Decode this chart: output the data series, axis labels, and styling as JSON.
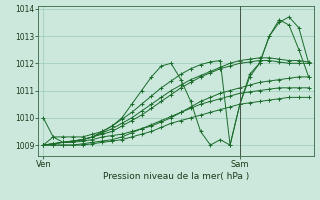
{
  "bg_color": "#cce8dd",
  "grid_color": "#99ccbb",
  "line_color": "#1a6b2a",
  "marker_color": "#1a6b2a",
  "xlabel": "Pression niveau de la mer( hPa )",
  "ylim": [
    1008.6,
    1014.1
  ],
  "yticks": [
    1009,
    1010,
    1011,
    1012,
    1013,
    1014
  ],
  "xtick_labels": [
    "Ven",
    "Sam"
  ],
  "xtick_pos": [
    0,
    20
  ],
  "total_points": 28,
  "vline_x": 20,
  "series": [
    [
      1010.0,
      1009.3,
      1009.1,
      1009.1,
      1009.15,
      1009.2,
      1009.3,
      1009.35,
      1009.4,
      1009.5,
      1009.6,
      1009.7,
      1009.85,
      1010.0,
      1010.2,
      1010.4,
      1010.6,
      1010.75,
      1010.9,
      1011.0,
      1011.1,
      1011.2,
      1011.3,
      1011.35,
      1011.4,
      1011.45,
      1011.5,
      1011.5
    ],
    [
      1009.0,
      1009.05,
      1009.1,
      1009.15,
      1009.2,
      1009.3,
      1009.4,
      1009.5,
      1009.7,
      1009.9,
      1010.1,
      1010.35,
      1010.6,
      1010.85,
      1011.1,
      1011.3,
      1011.5,
      1011.65,
      1011.8,
      1011.9,
      1012.0,
      1012.05,
      1012.1,
      1012.1,
      1012.05,
      1012.0,
      1012.0,
      1012.0
    ],
    [
      1009.0,
      1009.05,
      1009.1,
      1009.15,
      1009.2,
      1009.3,
      1009.45,
      1009.6,
      1009.8,
      1010.0,
      1010.25,
      1010.5,
      1010.75,
      1011.0,
      1011.2,
      1011.4,
      1011.55,
      1011.7,
      1011.85,
      1012.0,
      1012.1,
      1012.15,
      1012.2,
      1012.2,
      1012.15,
      1012.1,
      1012.1,
      1012.05
    ],
    [
      1009.0,
      1009.05,
      1009.1,
      1009.15,
      1009.2,
      1009.3,
      1009.5,
      1009.7,
      1009.95,
      1010.2,
      1010.5,
      1010.8,
      1011.1,
      1011.35,
      1011.6,
      1011.8,
      1011.95,
      1012.05,
      1012.1,
      1009.0,
      1010.5,
      1011.6,
      1012.0,
      1013.0,
      1013.6,
      1013.4,
      1012.5,
      1011.5
    ],
    [
      1009.0,
      1009.3,
      1009.3,
      1009.3,
      1009.3,
      1009.4,
      1009.5,
      1009.7,
      1010.0,
      1010.5,
      1011.0,
      1011.5,
      1011.9,
      1012.0,
      1011.4,
      1010.6,
      1009.5,
      1009.0,
      1009.2,
      1009.0,
      1010.5,
      1011.5,
      1012.0,
      1013.0,
      1013.5,
      1013.7,
      1013.3,
      1012.0
    ],
    [
      1009.0,
      1009.0,
      1009.0,
      1009.0,
      1009.05,
      1009.1,
      1009.15,
      1009.2,
      1009.3,
      1009.45,
      1009.6,
      1009.75,
      1009.9,
      1010.05,
      1010.2,
      1010.35,
      1010.5,
      1010.6,
      1010.7,
      1010.8,
      1010.9,
      1010.95,
      1011.0,
      1011.05,
      1011.1,
      1011.1,
      1011.1,
      1011.1
    ],
    [
      1009.0,
      1009.0,
      1009.0,
      1009.0,
      1009.0,
      1009.05,
      1009.1,
      1009.15,
      1009.2,
      1009.3,
      1009.4,
      1009.5,
      1009.65,
      1009.8,
      1009.9,
      1010.0,
      1010.1,
      1010.2,
      1010.3,
      1010.4,
      1010.5,
      1010.55,
      1010.6,
      1010.65,
      1010.7,
      1010.75,
      1010.75,
      1010.75
    ]
  ],
  "figsize": [
    3.2,
    2.0
  ],
  "dpi": 100
}
